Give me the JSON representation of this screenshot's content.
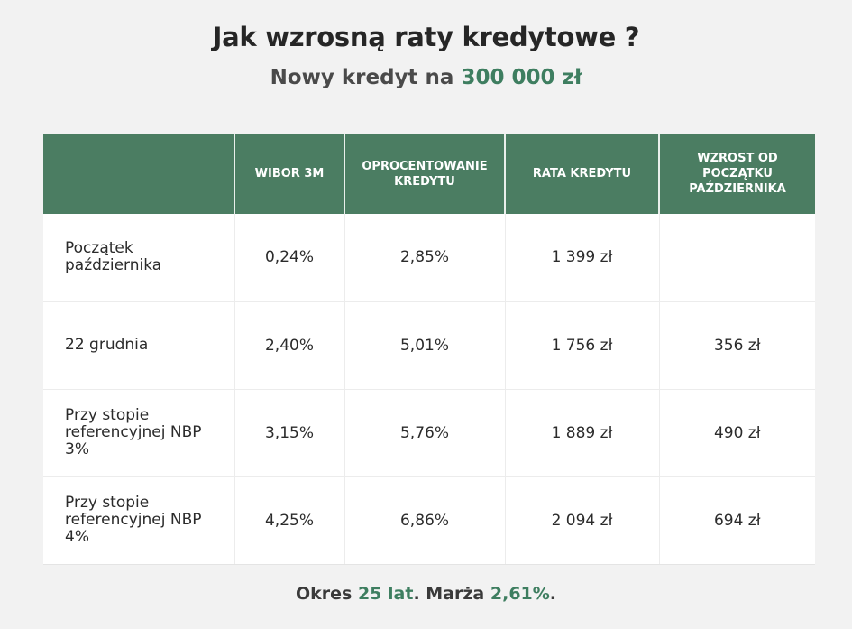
{
  "title": "Jak wzrosną raty kredytowe ?",
  "subtitle": {
    "prefix": "Nowy kredyt na",
    "amount": "300 000 zł"
  },
  "table": {
    "headers": [
      "",
      "WIBOR 3M",
      "OPROCENTOWANIE KREDYTU",
      "RATA KREDYTU",
      "WZROST OD POCZĄTKU PAŹDZIERNIKA"
    ],
    "rows": [
      {
        "label": "Początek października",
        "wibor": "0,24%",
        "rate": "2,85%",
        "installment": "1 399 zł",
        "increase": ""
      },
      {
        "label": "22 grudnia",
        "wibor": "2,40%",
        "rate": "5,01%",
        "installment": "1 756 zł",
        "increase": "356 zł"
      },
      {
        "label": "Przy stopie referencyjnej NBP 3%",
        "wibor": "3,15%",
        "rate": "5,76%",
        "installment": "1 889 zł",
        "increase": "490 zł"
      },
      {
        "label": "Przy stopie referencyjnej NBP 4%",
        "wibor": "4,25%",
        "rate": "6,86%",
        "installment": "2 094 zł",
        "increase": "694 zł"
      }
    ]
  },
  "footer": {
    "part1": "Okres",
    "term": "25 lat",
    "part2": ". Marża",
    "margin": "2,61%",
    "part3": "."
  },
  "colors": {
    "header_bg": "#4b7d62",
    "accent": "#3e7e60",
    "background": "#f2f2f2"
  }
}
